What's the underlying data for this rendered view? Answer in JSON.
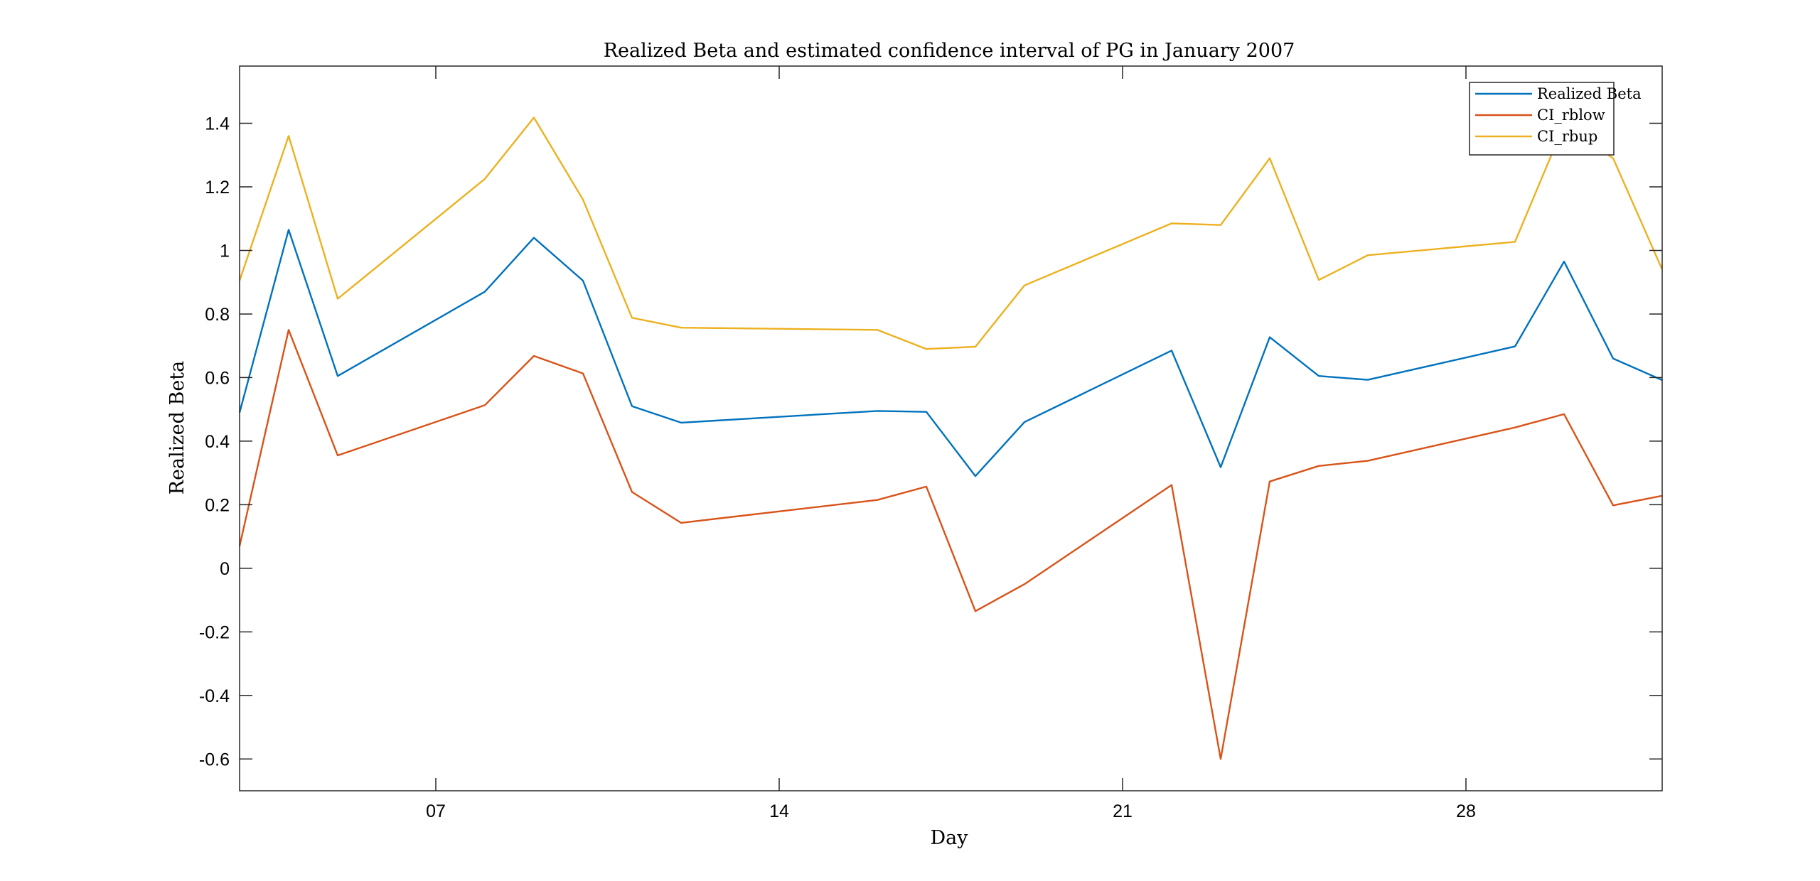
{
  "chart_data": {
    "type": "line",
    "title": "Realized Beta and estimated confidence interval of PG in January 2007",
    "xlabel": "Day",
    "ylabel": "Realized Beta",
    "xlim": [
      3,
      32
    ],
    "ylim": [
      -0.7,
      1.58
    ],
    "x_ticks": [
      7,
      14,
      21,
      28
    ],
    "x_tick_labels": [
      "07",
      "14",
      "21",
      "28"
    ],
    "y_ticks": [
      -0.6,
      -0.4,
      -0.2,
      0,
      0.2,
      0.4,
      0.6,
      0.8,
      1,
      1.2,
      1.4
    ],
    "y_tick_labels": [
      "-0.6",
      "-0.4",
      "-0.2",
      "0",
      "0.2",
      "0.4",
      "0.6",
      "0.8",
      "1",
      "1.2",
      "1.4"
    ],
    "grid": false,
    "legend_position": "top-right",
    "x": [
      3,
      4,
      5,
      8,
      9,
      10,
      11,
      12,
      16,
      17,
      18,
      19,
      22,
      23,
      24,
      25,
      26,
      29,
      30,
      31,
      32
    ],
    "series": [
      {
        "name": "Realized Beta",
        "color": "#0072BD",
        "values": [
          0.49,
          1.065,
          0.605,
          0.87,
          1.04,
          0.905,
          0.51,
          0.458,
          0.495,
          0.492,
          0.29,
          0.46,
          0.685,
          0.318,
          0.727,
          0.605,
          0.593,
          0.698,
          0.965,
          0.66,
          0.592
        ]
      },
      {
        "name": "CI_rblow",
        "color": "#D95319",
        "values": [
          0.07,
          0.75,
          0.355,
          0.513,
          0.668,
          0.613,
          0.24,
          0.143,
          0.215,
          0.257,
          -0.135,
          -0.05,
          0.262,
          -0.6,
          0.273,
          0.322,
          0.338,
          0.443,
          0.485,
          0.198,
          0.228
        ]
      },
      {
        "name": "CI_rbup",
        "color": "#EDB120",
        "values": [
          0.905,
          1.36,
          0.848,
          1.225,
          1.418,
          1.16,
          0.788,
          0.757,
          0.75,
          0.69,
          0.697,
          0.89,
          1.085,
          1.08,
          1.29,
          0.907,
          0.985,
          1.027,
          1.395,
          1.29,
          0.94
        ]
      }
    ]
  }
}
